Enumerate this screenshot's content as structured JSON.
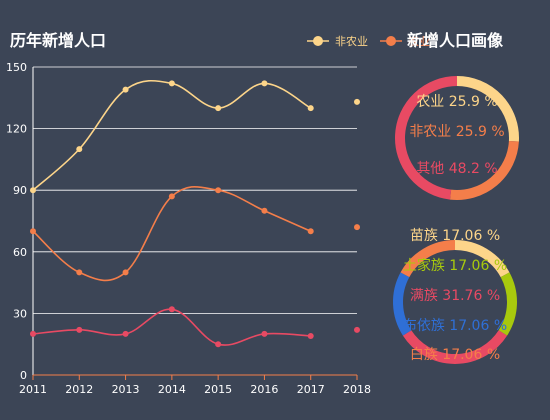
{
  "colors": {
    "background": "#3c4556",
    "nonfarm": "#fdd58a",
    "farm": "#f47e4a",
    "other": "#e84a63",
    "green": "#a8c90d",
    "blue": "#2f6fd6"
  },
  "chart_data": [
    {
      "type": "line",
      "title": "历年新增人口",
      "x": [
        "2011",
        "2012",
        "2013",
        "2014",
        "2015",
        "2016",
        "2017",
        "2018"
      ],
      "ylim": [
        0,
        150
      ],
      "yticks": [
        "0",
        "30",
        "60",
        "90",
        "120",
        "150"
      ],
      "grid": true,
      "legend": "top-right",
      "smooth": true,
      "series": [
        {
          "name": "非农业",
          "color": "#fdd58a",
          "values": [
            90,
            110,
            139,
            142,
            130,
            142,
            130,
            133
          ]
        },
        {
          "name": "农业",
          "color": "#f47e4a",
          "values": [
            70,
            50,
            50,
            87,
            90,
            80,
            70,
            72
          ]
        },
        {
          "name": "其他",
          "color": "#e84a63",
          "values": [
            20,
            22,
            20,
            32,
            15,
            20,
            19,
            22
          ]
        }
      ]
    },
    {
      "type": "pie",
      "title": "新增人口画像",
      "slices": [
        {
          "label": "农业 25.9 %",
          "value": 25.9,
          "color": "#fdd58a"
        },
        {
          "label": "非农业 25.9 %",
          "value": 25.9,
          "color": "#f47e4a"
        },
        {
          "label": "其他 48.2 %",
          "value": 48.2,
          "color": "#e84a63"
        }
      ]
    },
    {
      "type": "pie",
      "slices": [
        {
          "label": "苗族 17.06 %",
          "value": 17.06,
          "color": "#fdd58a"
        },
        {
          "label": "土家族 17.06 %",
          "value": 17.06,
          "color": "#a8c90d"
        },
        {
          "label": "满族 31.76 %",
          "value": 31.76,
          "color": "#e84a63"
        },
        {
          "label": "布依族 17.06 %",
          "value": 17.06,
          "color": "#2f6fd6"
        },
        {
          "label": "白族 17.06 %",
          "value": 17.06,
          "color": "#f47e4a"
        }
      ]
    }
  ]
}
